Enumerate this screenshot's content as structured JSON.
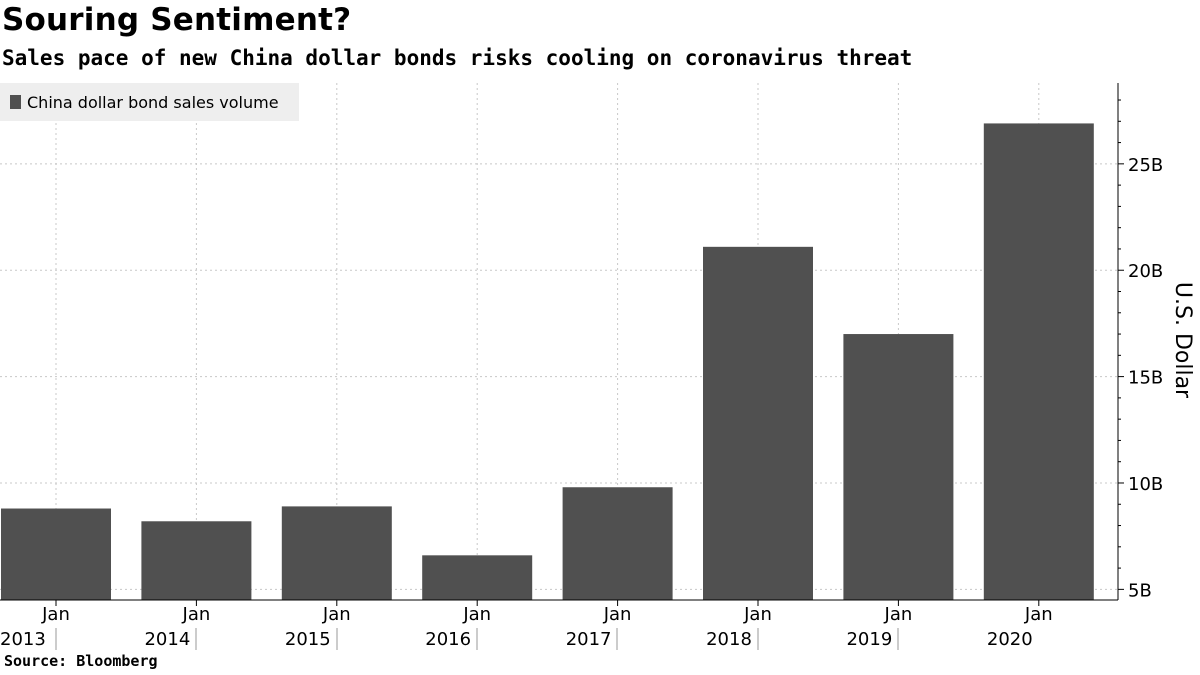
{
  "header": {
    "title": "Souring Sentiment?",
    "subtitle": "Sales pace of new China dollar bonds risks cooling on coronavirus threat"
  },
  "footer": {
    "source_label": "Source:",
    "source_value": "Bloomberg"
  },
  "colors": {
    "bar": "#505050",
    "grid": "#c8c8c8",
    "legend_bg": "#eeeeee",
    "axis": "#000000"
  },
  "chart_data": {
    "type": "bar",
    "title": "Souring Sentiment?",
    "subtitle": "Sales pace of new China dollar bonds risks cooling on coronavirus threat",
    "categories": [
      "Jan 2013",
      "Jan 2014",
      "Jan 2015",
      "Jan 2016",
      "Jan 2017",
      "Jan 2018",
      "Jan 2019",
      "Jan 2020"
    ],
    "x_tick_month": "Jan",
    "x_tick_years": [
      "2013",
      "2014",
      "2015",
      "2016",
      "2017",
      "2018",
      "2019",
      "2020"
    ],
    "series": [
      {
        "name": "China dollar bond sales volume",
        "values": [
          8.8,
          8.2,
          8.9,
          6.6,
          9.8,
          21.1,
          17.0,
          26.9
        ]
      }
    ],
    "ylabel": "U.S. Dollar",
    "y_unit": "billion USD",
    "ylim": [
      4.5,
      28.8
    ],
    "y_ticks": [
      5,
      10,
      15,
      20,
      25
    ],
    "y_tick_labels": [
      "5B",
      "10B",
      "15B",
      "20B",
      "25B"
    ],
    "y_axis_side": "right",
    "grid": true,
    "legend_position": "top-left"
  }
}
